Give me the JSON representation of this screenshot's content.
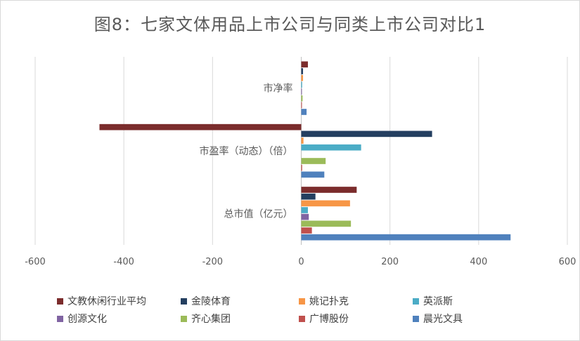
{
  "chart_data": {
    "type": "bar",
    "orientation": "horizontal",
    "title": "图8：七家文体用品上市公司与同类上市公司对比1",
    "categories": [
      "市净率",
      "市盈率（动态）（倍）",
      "总市值（亿元）"
    ],
    "xlim": [
      -600,
      600
    ],
    "xticks": [
      -600,
      -400,
      -200,
      0,
      200,
      400,
      600
    ],
    "grid": "vertical",
    "legend_position": "bottom",
    "series": [
      {
        "name": "文教休闲行业平均",
        "color": "#7B2C2C",
        "values": [
          15,
          -455,
          125
        ]
      },
      {
        "name": "金陵体育",
        "color": "#243F60",
        "values": [
          4,
          295,
          32
        ]
      },
      {
        "name": "姚记扑克",
        "color": "#F79646",
        "values": [
          4,
          5,
          110
        ]
      },
      {
        "name": "英派斯",
        "color": "#4BACC6",
        "values": [
          2,
          135,
          15
        ]
      },
      {
        "name": "创源文化",
        "color": "#8064A2",
        "values": [
          1,
          0,
          17
        ]
      },
      {
        "name": "齐心集团",
        "color": "#9BBB59",
        "values": [
          3,
          55,
          112
        ]
      },
      {
        "name": "广博股份",
        "color": "#C0504D",
        "values": [
          1,
          2,
          24
        ]
      },
      {
        "name": "晨光文具",
        "color": "#4F81BD",
        "values": [
          12,
          52,
          472
        ]
      }
    ]
  }
}
